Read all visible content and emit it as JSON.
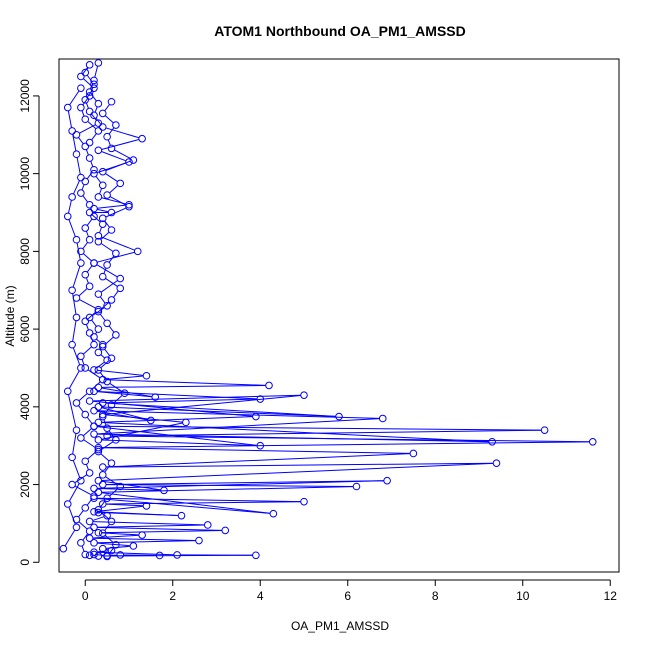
{
  "chart_data": {
    "type": "scatter",
    "title": "ATOM1 Northbound OA_PM1_AMSSD",
    "xlabel": "OA_PM1_AMSSD",
    "ylabel": "Altitude (m)",
    "xlim": [
      -0.6,
      12.2
    ],
    "ylim": [
      -250,
      12950
    ],
    "xticks": [
      0,
      2,
      4,
      6,
      8,
      10,
      12
    ],
    "yticks": [
      0,
      2000,
      4000,
      6000,
      8000,
      10000,
      12000
    ],
    "grid": false,
    "legend": "none",
    "marker": "open-circle",
    "connected": true,
    "color": "#0000ff",
    "series": [
      {
        "x": [
          0.1,
          0.2,
          0.5,
          0.8,
          1.7,
          0.3,
          3.9,
          2.1,
          0.2,
          0.6,
          0.4,
          1.1,
          0.2,
          2.6,
          0.1,
          1.3,
          0.3,
          3.2,
          0.2,
          2.8,
          0.1,
          0.5,
          0.3,
          2.2,
          0.2,
          1.4,
          0.4,
          5.0,
          0.2,
          4.3,
          0.3,
          6.2,
          0.4,
          6.9,
          0.2,
          1.8,
          0.3,
          9.4,
          0.4,
          7.5,
          0.3,
          11.6,
          0.5,
          10.5,
          0.2,
          4.0,
          0.3,
          2.3,
          0.4,
          5.0,
          0.1,
          3.9,
          0.3,
          9.3,
          0.2,
          6.8,
          0.2,
          1.5,
          0.3,
          5.8,
          0.4,
          4.0,
          0.2,
          1.6,
          0.3,
          4.2,
          0.4,
          1.4,
          0.2,
          0.5,
          0.3,
          0.4,
          0.2,
          0.3,
          0.1,
          0.5,
          0.3,
          0.8,
          0.2,
          1.2,
          0.3,
          0.4,
          0.1,
          0.6,
          0.2,
          1.0,
          0.3,
          0.4,
          0.2,
          1.0,
          0.3,
          1.3,
          0.4,
          0.2,
          0.3,
          0.1,
          0.2,
          0.3
        ],
        "y": [
          180,
          200,
          170,
          190,
          175,
          160,
          180,
          190,
          260,
          300,
          350,
          420,
          500,
          560,
          620,
          700,
          760,
          820,
          900,
          960,
          1050,
          1200,
          1280,
          1200,
          1300,
          1450,
          1500,
          1560,
          1650,
          1250,
          1800,
          1950,
          2000,
          2100,
          1900,
          1850,
          2100,
          2550,
          2450,
          2800,
          2950,
          3100,
          3250,
          3400,
          3500,
          3000,
          3150,
          3600,
          3800,
          4300,
          4150,
          3750,
          3600,
          3100,
          3300,
          3700,
          3900,
          3650,
          4000,
          3750,
          4100,
          4200,
          4400,
          4250,
          4500,
          4550,
          4700,
          4800,
          4950,
          5200,
          5400,
          5600,
          5800,
          6000,
          6300,
          6600,
          6900,
          7300,
          7700,
          8000,
          8400,
          8700,
          9000,
          9000,
          9100,
          9200,
          9400,
          9700,
          10000,
          10300,
          10600,
          10900,
          11200,
          11500,
          11800,
          12100,
          12400,
          12850
        ]
      },
      {
        "x": [
          0.0,
          -0.1,
          0.1,
          -0.2,
          0.0,
          0.2,
          -0.3,
          0.1,
          0.0,
          0.3,
          -0.1,
          0.2,
          0.0,
          -0.2,
          0.1,
          0.4,
          0.0,
          -0.1,
          0.2,
          0.1,
          0.0,
          0.3,
          -0.2,
          0.1,
          0.0,
          0.2,
          -0.1,
          0.1,
          0.0,
          0.2,
          0.1,
          -0.1,
          0.0,
          0.2,
          0.1,
          0.0,
          -0.2,
          0.3,
          0.1,
          0.0,
          0.2,
          -0.1,
          0.1,
          0.0,
          0.2,
          0.1,
          -0.1,
          0.0,
          0.3,
          0.1
        ],
        "y": [
          200,
          500,
          800,
          1100,
          1400,
          1700,
          2000,
          2300,
          2600,
          2900,
          3200,
          3500,
          3800,
          4100,
          4400,
          4700,
          5000,
          5300,
          5600,
          5900,
          6200,
          6500,
          6800,
          7100,
          7400,
          7700,
          8000,
          8300,
          8600,
          8900,
          9200,
          9500,
          9800,
          10100,
          10400,
          10700,
          11000,
          11300,
          11600,
          11900,
          12200,
          12500,
          12800,
          12600,
          12300,
          12000,
          11700,
          11400,
          11100,
          10800
        ]
      },
      {
        "x": [
          0.5,
          0.7,
          0.4,
          0.6,
          0.3,
          0.5,
          0.8,
          0.4,
          0.6,
          0.3,
          0.7,
          0.5,
          0.4,
          0.6,
          0.9,
          0.5,
          0.3,
          0.6,
          0.4,
          0.7,
          0.5,
          0.3,
          0.6,
          0.8,
          0.4,
          0.5,
          0.7,
          0.3,
          0.6,
          0.4,
          1.0,
          0.5,
          0.8,
          0.4,
          1.1,
          0.6,
          0.5,
          0.7,
          0.4,
          0.6
        ],
        "y": [
          150,
          450,
          750,
          1050,
          1350,
          1650,
          1950,
          2250,
          2550,
          2850,
          3150,
          3450,
          3750,
          4050,
          4350,
          4650,
          4950,
          5250,
          5550,
          5850,
          6150,
          6450,
          6750,
          7050,
          7350,
          7650,
          7950,
          8250,
          8550,
          8850,
          9150,
          9450,
          9750,
          10050,
          10350,
          10650,
          10950,
          11250,
          11550,
          11850
        ]
      },
      {
        "x": [
          -0.5,
          -0.2,
          -0.4,
          -0.1,
          -0.3,
          -0.2,
          -0.4,
          -0.1,
          -0.3,
          -0.2,
          -0.3,
          -0.1,
          -0.2,
          -0.4,
          -0.3,
          -0.1,
          -0.2,
          -0.3,
          -0.4,
          -0.1
        ],
        "y": [
          350,
          900,
          1500,
          2100,
          2700,
          3400,
          4400,
          5000,
          5600,
          6300,
          7000,
          7700,
          8300,
          8900,
          9400,
          9900,
          10500,
          11100,
          11700,
          12200
        ]
      }
    ]
  }
}
